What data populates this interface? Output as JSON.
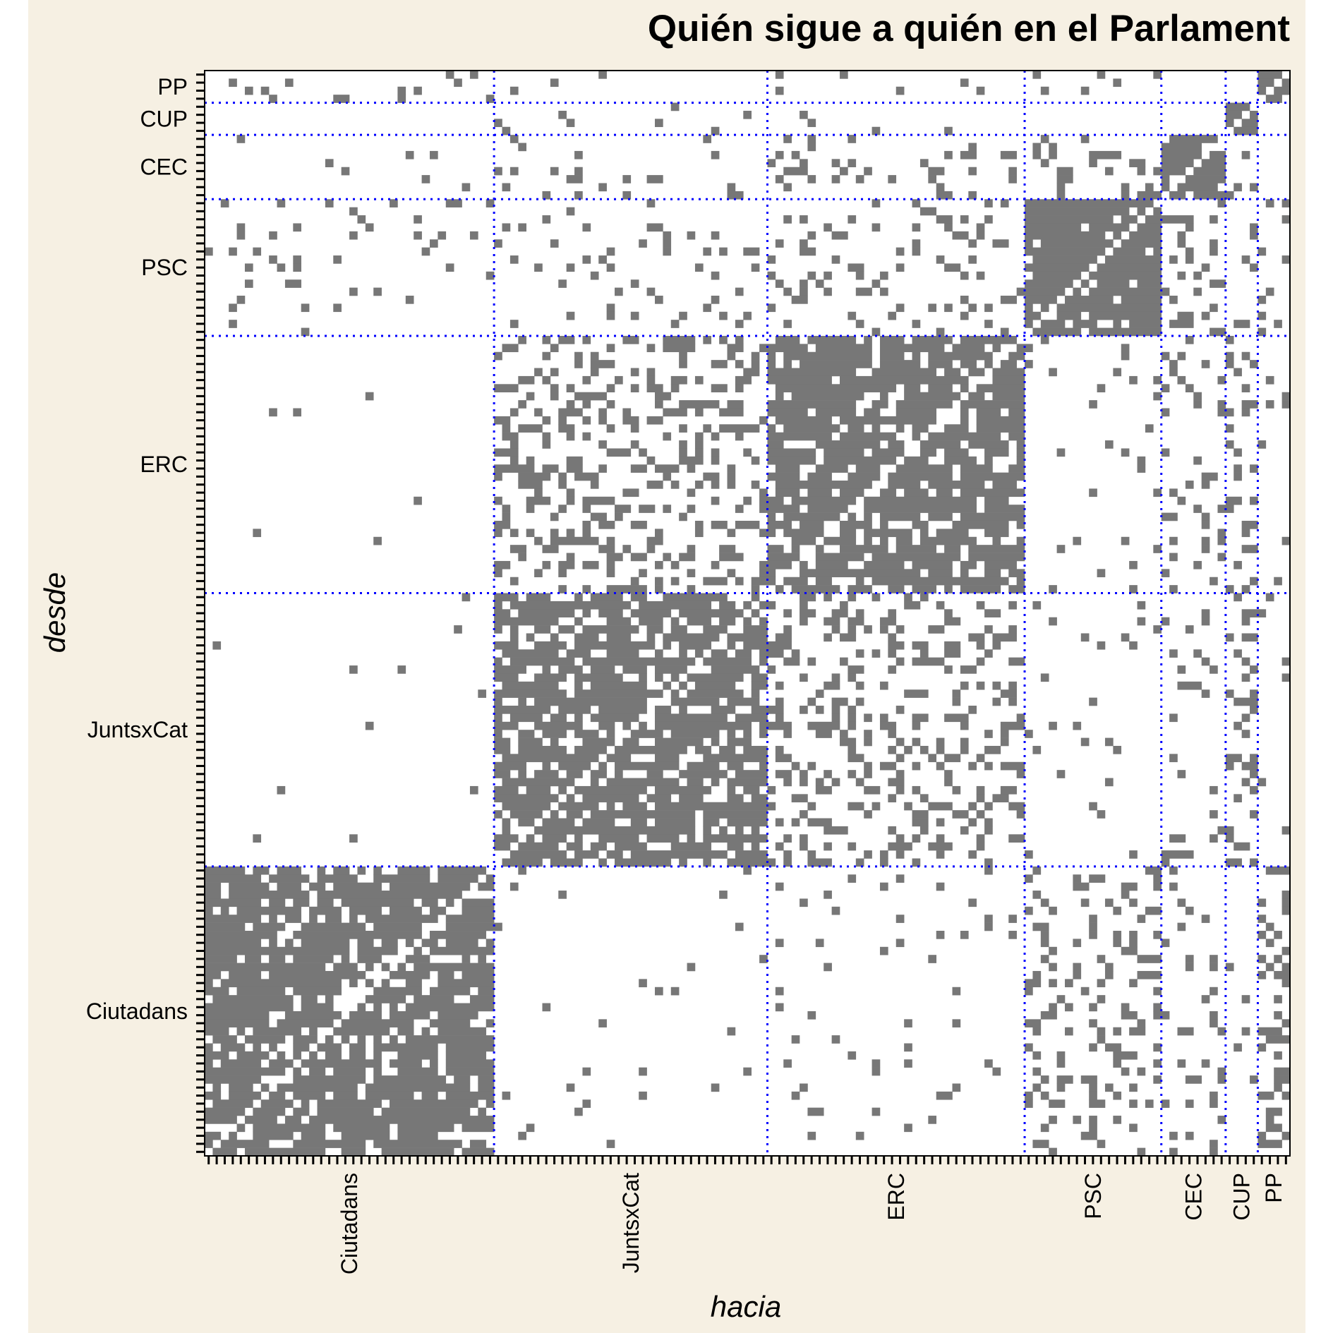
{
  "chart_data": {
    "type": "heatmap",
    "title": "Quién sigue a quién en el Parlament",
    "xlabel": "hacia",
    "ylabel": "desde",
    "groups_x": [
      "Ciutadans",
      "JuntsxCat",
      "ERC",
      "PSC",
      "CEC",
      "CUP",
      "PP"
    ],
    "groups_y_top_to_bottom": [
      "PP",
      "CUP",
      "CEC",
      "PSC",
      "ERC",
      "JuntsxCat",
      "Ciutadans"
    ],
    "group_sizes": {
      "Ciutadans": 36,
      "JuntsxCat": 34,
      "ERC": 32,
      "PSC": 17,
      "CEC": 8,
      "CUP": 4,
      "PP": 4
    },
    "total_members": 135,
    "diagonal_excluded": true,
    "block_density": {
      "Ciutadans": {
        "Ciutadans": 0.83,
        "JuntsxCat": 0.02,
        "ERC": 0.05,
        "PSC": 0.22,
        "CEC": 0.12,
        "CUP": 0.04,
        "PP": 0.35
      },
      "JuntsxCat": {
        "Ciutadans": 0.01,
        "JuntsxCat": 0.78,
        "ERC": 0.28,
        "PSC": 0.04,
        "CEC": 0.1,
        "CUP": 0.3,
        "PP": 0.04
      },
      "ERC": {
        "Ciutadans": 0.01,
        "JuntsxCat": 0.32,
        "ERC": 0.8,
        "PSC": 0.06,
        "CEC": 0.18,
        "CUP": 0.28,
        "PP": 0.04
      },
      "PSC": {
        "Ciutadans": 0.08,
        "JuntsxCat": 0.08,
        "ERC": 0.15,
        "PSC": 0.92,
        "CEC": 0.28,
        "CUP": 0.1,
        "PP": 0.2
      },
      "CEC": {
        "Ciutadans": 0.03,
        "JuntsxCat": 0.06,
        "ERC": 0.14,
        "PSC": 0.22,
        "CEC": 0.94,
        "CUP": 0.06,
        "PP": 0.06
      },
      "CUP": {
        "Ciutadans": 0.0,
        "JuntsxCat": 0.06,
        "ERC": 0.03,
        "PSC": 0.0,
        "CEC": 0.0,
        "CUP": 0.92,
        "PP": 0.0
      },
      "PP": {
        "Ciutadans": 0.07,
        "JuntsxCat": 0.04,
        "ERC": 0.1,
        "PSC": 0.1,
        "CEC": 0.05,
        "CUP": 0.0,
        "PP": 0.92
      }
    },
    "colors": {
      "background": "#f6f0e3",
      "panel": "#ffffff",
      "cell": "#777777",
      "separator": "#0000ff",
      "axis": "#000000"
    },
    "grid": false,
    "legend": "none"
  }
}
